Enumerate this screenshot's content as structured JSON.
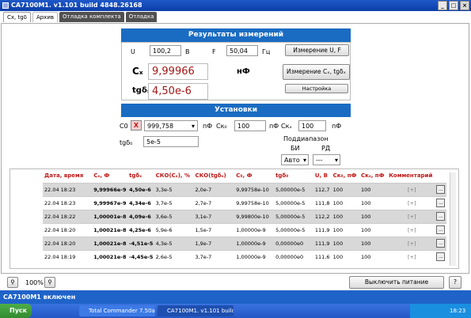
{
  "window": {
    "title": "СА7100М1. v1.101 build 4848.26168"
  },
  "tabs": [
    "Cx, tgδ",
    "Архив",
    "Отладка комплекта",
    "Отладка"
  ],
  "results": {
    "header": "Результаты измерений",
    "u_label": "U",
    "u_value": "100,2",
    "u_unit": "В",
    "f_label": "F",
    "f_value": "50,04",
    "f_unit": "Гц",
    "measure_uf_btn": "Измерение U, F",
    "cx_label": "Cₓ",
    "cx_value": "9,99966",
    "cx_unit": "нФ",
    "tg_label": "tgδₓ",
    "tg_value": "4,50e-6",
    "measure_cx_btn": "Измерение Cₓ, tgδₓ",
    "settings_btn": "Настройка"
  },
  "setup": {
    "header": "Установки",
    "c0_label": "C0",
    "c0_value": "999,758",
    "c0_unit": "пФ",
    "ck0_label": "Cк₀",
    "ck0_value": "100",
    "ck0_unit": "пФ",
    "ckx_label": "Cкₓ",
    "ckx_value": "100",
    "ckx_unit": "пФ",
    "tg0_label": "tgδ₀",
    "tg0_value": "5e-5",
    "subrange_label": "Поддиапазон",
    "bi_label": "БИ",
    "rd_label": "РД",
    "bi_value": "Авто",
    "rd_value": "---",
    "clear_btn": "X"
  },
  "table": {
    "headers": [
      "Дата, время",
      "Cₓ, Ф",
      "tgδₓ",
      "СКО(Cₓ), %",
      "СКО(tgδₓ)",
      "C₀, Ф",
      "tgδ₀",
      "U, В",
      "Cк₀, пФ",
      "Cкₓ, пФ",
      "Комментарий"
    ],
    "rows": [
      [
        "22.04 18:23",
        "9,99966e-9",
        "4,50e-6",
        "3,3e-5",
        "2,0e-7",
        "9,99758e-10",
        "5,00000e-5",
        "112,7",
        "100",
        "100"
      ],
      [
        "22.04 18:23",
        "9,99967e-9",
        "4,34e-6",
        "3,7e-5",
        "2,7e-7",
        "9,99758e-10",
        "5,00000e-5",
        "111,8",
        "100",
        "100"
      ],
      [
        "22.04 18:22",
        "1,00001e-8",
        "4,09e-6",
        "3,6e-5",
        "3,1e-7",
        "9,99800e-10",
        "5,00000e-5",
        "112,2",
        "100",
        "100"
      ],
      [
        "22.04 18:20",
        "1,00021e-8",
        "4,25e-6",
        "5,9e-6",
        "1,5e-7",
        "1,00000e-9",
        "5,00000e-5",
        "111,9",
        "100",
        "100"
      ],
      [
        "22.04 18:20",
        "1,00021e-8",
        "-4,51e-5",
        "4,3e-5",
        "1,9e-7",
        "1,00000e-9",
        "0,00000e0",
        "111,9",
        "100",
        "100"
      ],
      [
        "22.04 18:19",
        "1,00021e-8",
        "-4,45e-5",
        "2,6e-5",
        "3,7e-7",
        "1,00000e-9",
        "0,00000e0",
        "111,6",
        "100",
        "100"
      ]
    ],
    "comment_placeholder": "[+]",
    "row_btn": "..."
  },
  "bottom": {
    "zoom": "100%",
    "power_btn": "Выключить питание",
    "help_btn": "?"
  },
  "statusbar": {
    "text": "СА7100М1 включен"
  },
  "taskbar": {
    "start": "Пуск",
    "items": [
      "Total Commander 7.50a ...",
      "СА7100М1. v1.101 build ..."
    ],
    "clock": "18:23"
  }
}
